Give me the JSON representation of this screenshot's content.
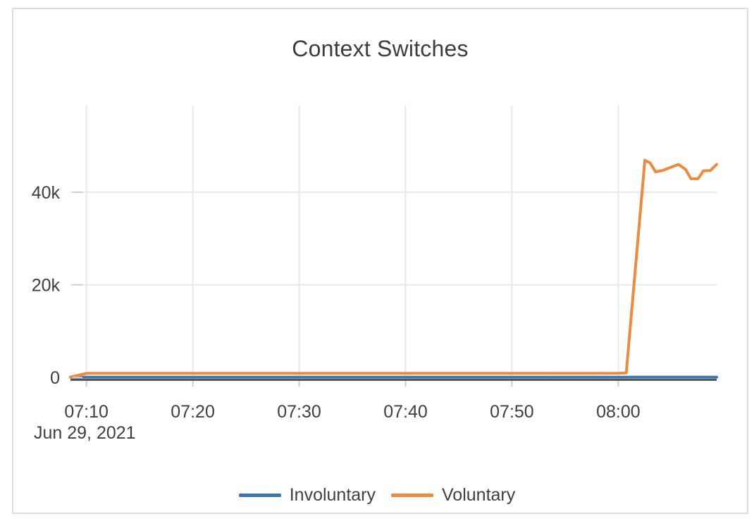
{
  "theme": {
    "card_border": "#dddddd",
    "grid_color": "#e9e9e9",
    "tick_color": "#cccccc",
    "axis_line_color": "#3b3b3b",
    "text_color": "#3f3f3f",
    "title_color": "#3d3d3d"
  },
  "chart_data": {
    "type": "line",
    "title": "Context Switches",
    "x_axis": {
      "tick_labels": [
        "07:10",
        "07:20",
        "07:30",
        "07:40",
        "07:50",
        "08:00"
      ],
      "date_label": "Jun 29, 2021",
      "range": [
        "07:08:30",
        "08:09:15"
      ],
      "grid": true
    },
    "y_axis": {
      "tick_values": [
        0,
        20000,
        40000
      ],
      "tick_labels": [
        "0",
        "20k",
        "40k"
      ],
      "range": [
        -450,
        58700
      ],
      "grid": true
    },
    "legend": {
      "position": "bottom-center"
    },
    "series": [
      {
        "name": "Involuntary",
        "color": "#3d76ad",
        "points": [
          {
            "t": "07:08:30",
            "v": 40
          },
          {
            "t": "08:09:15",
            "v": 40
          }
        ]
      },
      {
        "name": "Voluntary",
        "color": "#ee8a3b",
        "points": [
          {
            "t": "07:08:30",
            "v": 60
          },
          {
            "t": "07:10:00",
            "v": 880
          },
          {
            "t": "07:20:00",
            "v": 880
          },
          {
            "t": "07:30:00",
            "v": 880
          },
          {
            "t": "07:40:00",
            "v": 880
          },
          {
            "t": "07:50:00",
            "v": 880
          },
          {
            "t": "08:00:00",
            "v": 900
          },
          {
            "t": "08:00:45",
            "v": 950
          },
          {
            "t": "08:02:30",
            "v": 46900
          },
          {
            "t": "08:03:00",
            "v": 46300
          },
          {
            "t": "08:03:30",
            "v": 44400
          },
          {
            "t": "08:04:10",
            "v": 44700
          },
          {
            "t": "08:05:40",
            "v": 46000
          },
          {
            "t": "08:06:20",
            "v": 44900
          },
          {
            "t": "08:06:50",
            "v": 42900
          },
          {
            "t": "08:07:30",
            "v": 42900
          },
          {
            "t": "08:08:00",
            "v": 44600
          },
          {
            "t": "08:08:40",
            "v": 44700
          },
          {
            "t": "08:09:15",
            "v": 46000
          }
        ]
      }
    ]
  }
}
